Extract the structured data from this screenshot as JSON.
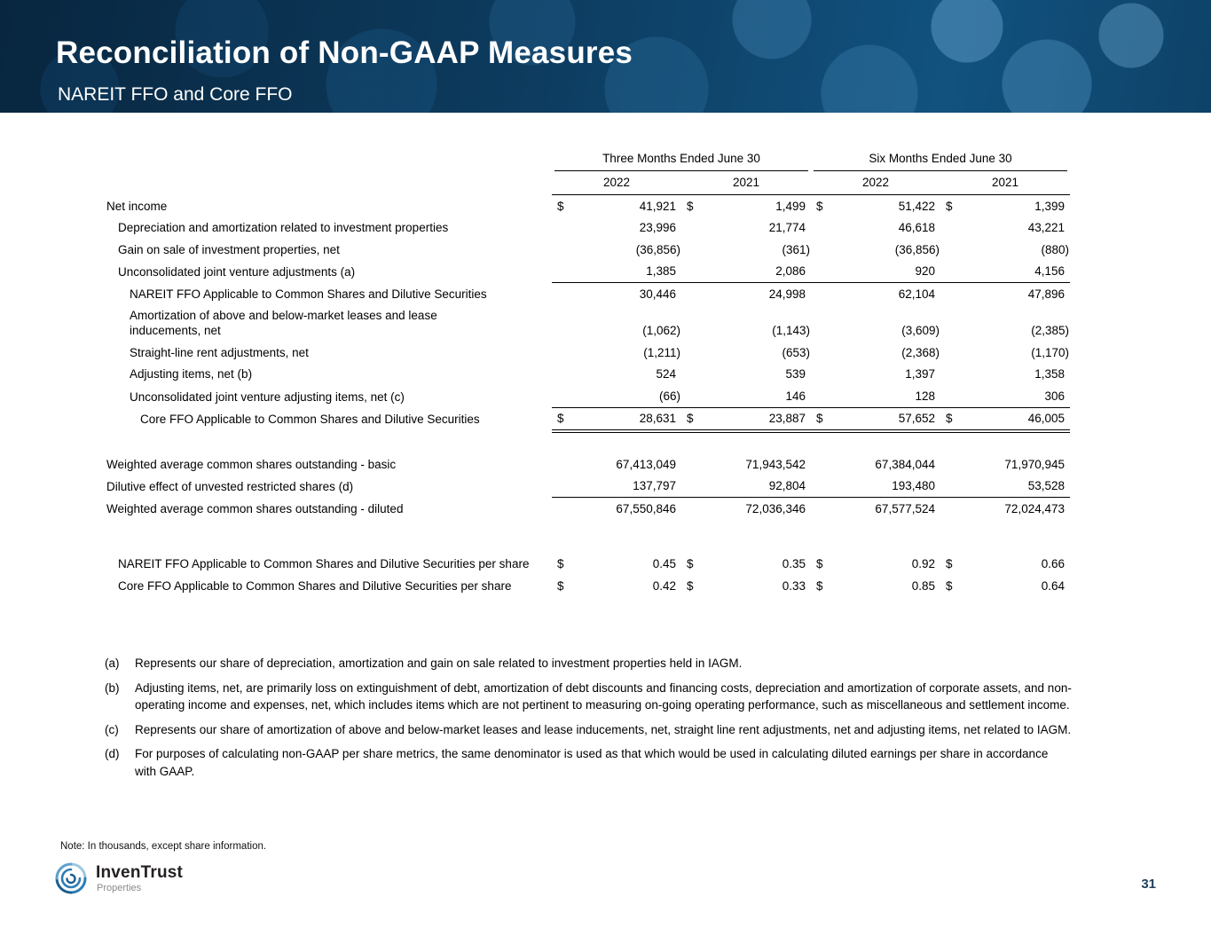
{
  "slide": {
    "title": "Reconciliation of Non-GAAP Measures",
    "subtitle": "NAREIT FFO and Core FFO",
    "page_number": "31",
    "note": "Note: In thousands, except share information.",
    "logo_text": "InvenTrust",
    "logo_subtext": "Properties",
    "colors": {
      "header_bg": "#0d3c60",
      "logo_blue": "#2e7cb5",
      "page_text": "#23405e"
    }
  },
  "table": {
    "currency_symbol": "$",
    "col_groups": [
      "Three Months Ended June 30",
      "Six Months Ended June 30"
    ],
    "year_headers": [
      "2022",
      "2021",
      "2022",
      "2021"
    ],
    "rows": [
      {
        "label": "Net income",
        "indent": 0,
        "dollar": true,
        "values": [
          "41,921",
          "1,499",
          "51,422",
          "1,399"
        ]
      },
      {
        "label": "Depreciation and amortization related to investment properties",
        "indent": 1,
        "values": [
          "23,996",
          "21,774",
          "46,618",
          "43,221"
        ]
      },
      {
        "label": "Gain on sale of investment properties, net",
        "indent": 1,
        "values": [
          "(36,856)",
          "(361)",
          "(36,856)",
          "(880)"
        ]
      },
      {
        "label": "Unconsolidated joint venture adjustments (a)",
        "indent": 1,
        "values": [
          "1,385",
          "2,086",
          "920",
          "4,156"
        ],
        "rule_below": "single"
      },
      {
        "label": "NAREIT FFO Applicable to Common Shares and Dilutive Securities",
        "indent": 2,
        "two_line": true,
        "values": [
          "30,446",
          "24,998",
          "62,104",
          "47,896"
        ]
      },
      {
        "label": "Amortization of above and below-market leases and lease inducements, net",
        "indent": 2,
        "two_line": true,
        "values": [
          "(1,062)",
          "(1,143)",
          "(3,609)",
          "(2,385)"
        ]
      },
      {
        "label": "Straight-line rent adjustments, net",
        "indent": 2,
        "values": [
          "(1,211)",
          "(653)",
          "(2,368)",
          "(1,170)"
        ]
      },
      {
        "label": "Adjusting items, net (b)",
        "indent": 2,
        "values": [
          "524",
          "539",
          "1,397",
          "1,358"
        ]
      },
      {
        "label": "Unconsolidated joint venture adjusting items, net (c)",
        "indent": 2,
        "values": [
          "(66)",
          "146",
          "128",
          "306"
        ],
        "rule_below": "single"
      },
      {
        "label": "Core FFO Applicable to Common Shares and Dilutive Securities",
        "indent": 3,
        "dollar": true,
        "values": [
          "28,631",
          "23,887",
          "57,652",
          "46,005"
        ],
        "rule_below": "double"
      },
      {
        "type": "spacer",
        "height": 26
      },
      {
        "label": "Weighted average common shares outstanding - basic",
        "indent": 0,
        "values": [
          "67,413,049",
          "71,943,542",
          "67,384,044",
          "71,970,945"
        ]
      },
      {
        "label": "Dilutive effect of unvested restricted shares (d)",
        "indent": 0,
        "values": [
          "137,797",
          "92,804",
          "193,480",
          "53,528"
        ],
        "rule_below": "single"
      },
      {
        "label": "Weighted average common shares outstanding - diluted",
        "indent": 0,
        "values": [
          "67,550,846",
          "72,036,346",
          "67,577,524",
          "72,024,473"
        ]
      },
      {
        "type": "spacer",
        "height": 38
      },
      {
        "label": "NAREIT FFO Applicable to Common Shares and Dilutive Securities per share",
        "indent": 1,
        "dollar": true,
        "two_line": true,
        "values": [
          "0.45",
          "0.35",
          "0.92",
          "0.66"
        ]
      },
      {
        "label": "Core FFO Applicable to Common Shares and Dilutive Securities per share",
        "indent": 1,
        "dollar": true,
        "two_line": true,
        "values": [
          "0.42",
          "0.33",
          "0.85",
          "0.64"
        ]
      }
    ]
  },
  "footnotes": [
    {
      "marker": "(a)",
      "text": "Represents our share of depreciation, amortization and gain on sale related to investment properties held in IAGM."
    },
    {
      "marker": "(b)",
      "text": "Adjusting items, net, are primarily loss on extinguishment of debt, amortization of debt discounts and financing costs, depreciation and amortization of corporate assets, and non-operating income and expenses, net, which includes items which are not pertinent to measuring on-going operating performance, such as miscellaneous and settlement income."
    },
    {
      "marker": "(c)",
      "text": "Represents our share of amortization of above and below-market leases and lease inducements, net, straight line rent adjustments, net and adjusting items, net related to IAGM."
    },
    {
      "marker": "(d)",
      "text": "For purposes of calculating non-GAAP per share metrics, the same denominator is used as that which would be used in calculating diluted earnings per share in accordance with GAAP."
    }
  ]
}
